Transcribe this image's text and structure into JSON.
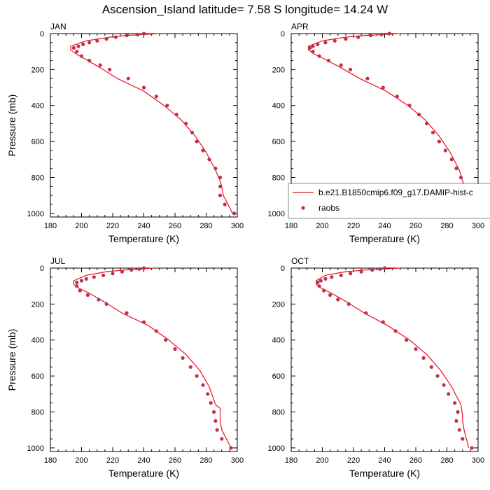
{
  "title": "Ascension_Island  latitude= 7.58 S longitude= 14.24 W",
  "colors": {
    "model": "#e8141e",
    "obs": "#c0304f",
    "axis": "#000000",
    "legend_border": "#888888"
  },
  "legend": {
    "model_label": "b.e21.B1850cmip6.f09_g17.DAMIP-hist-c",
    "obs_label": "raobs"
  },
  "chart_data": [
    {
      "type": "line",
      "panel": "JAN",
      "title": "JAN",
      "xlabel": "Temperature (K)",
      "ylabel": "Pressure (mb)",
      "xlim": [
        180,
        300
      ],
      "ylim": [
        1020,
        0
      ],
      "xticks": [
        180,
        200,
        220,
        240,
        260,
        280,
        300
      ],
      "yticks": [
        0,
        200,
        400,
        600,
        800,
        1000
      ],
      "series": [
        {
          "name": "b.e21.B1850cmip6.f09_g17.DAMIP-hist-c",
          "x": [
            250,
            240,
            229,
            218,
            203,
            193,
            193,
            196,
            202,
            212,
            223,
            240,
            253,
            264,
            273,
            280,
            286,
            289,
            290,
            291,
            297
          ],
          "y": [
            0,
            5,
            10,
            20,
            40,
            70,
            90,
            110,
            140,
            190,
            250,
            320,
            400,
            480,
            570,
            660,
            760,
            820,
            850,
            900,
            1000
          ]
        },
        {
          "name": "raobs",
          "x": [
            240,
            236,
            229,
            222,
            216,
            210,
            205,
            201,
            198,
            195,
            197,
            200,
            205,
            212,
            218,
            230,
            240,
            248,
            255,
            261,
            267,
            271,
            274,
            278,
            282,
            286,
            289,
            289,
            289,
            292,
            298
          ],
          "y": [
            0,
            5,
            10,
            20,
            30,
            40,
            50,
            60,
            70,
            80,
            100,
            125,
            150,
            175,
            200,
            250,
            300,
            350,
            400,
            450,
            500,
            550,
            600,
            650,
            700,
            750,
            800,
            850,
            900,
            950,
            1000
          ]
        }
      ]
    },
    {
      "type": "line",
      "panel": "APR",
      "title": "APR",
      "xlabel": "Temperature (K)",
      "ylabel": "",
      "xlim": [
        180,
        300
      ],
      "ylim": [
        1020,
        0
      ],
      "xticks": [
        180,
        200,
        220,
        240,
        260,
        280,
        300
      ],
      "yticks": [
        0,
        200,
        400,
        600,
        800,
        1000
      ],
      "series": [
        {
          "name": "b.e21.B1850cmip6.f09_g17.DAMIP-hist-c",
          "x": [
            250,
            240,
            228,
            215,
            200,
            191,
            191,
            194,
            201,
            212,
            224,
            241,
            255,
            266,
            275,
            282,
            288,
            290,
            291,
            292,
            297
          ],
          "y": [
            0,
            5,
            10,
            20,
            40,
            70,
            90,
            110,
            140,
            190,
            250,
            320,
            400,
            480,
            570,
            660,
            760,
            820,
            850,
            900,
            1000
          ]
        },
        {
          "name": "raobs",
          "x": [
            243,
            238,
            231,
            223,
            215,
            208,
            202,
            197,
            194,
            192,
            194,
            198,
            204,
            212,
            218,
            229,
            239,
            248,
            256,
            262,
            267,
            271,
            275,
            279,
            283,
            286,
            289,
            290,
            291,
            293,
            298
          ],
          "y": [
            0,
            5,
            10,
            20,
            30,
            40,
            50,
            60,
            70,
            80,
            100,
            125,
            150,
            175,
            200,
            250,
            300,
            350,
            400,
            450,
            500,
            550,
            600,
            650,
            700,
            750,
            800,
            850,
            900,
            950,
            1000
          ]
        }
      ]
    },
    {
      "type": "line",
      "panel": "JUL",
      "title": "JUL",
      "xlabel": "Temperature (K)",
      "ylabel": "Pressure (mb)",
      "xlim": [
        180,
        300
      ],
      "ylim": [
        1020,
        0
      ],
      "xticks": [
        180,
        200,
        220,
        240,
        260,
        280,
        300
      ],
      "yticks": [
        0,
        200,
        400,
        600,
        800,
        1000
      ],
      "series": [
        {
          "name": "b.e21.B1850cmip6.f09_g17.DAMIP-hist-c",
          "x": [
            246,
            238,
            228,
            216,
            203,
            195,
            195,
            198,
            205,
            215,
            226,
            243,
            256,
            267,
            276,
            282,
            286,
            289,
            289,
            290,
            296
          ],
          "y": [
            0,
            5,
            10,
            20,
            40,
            70,
            90,
            110,
            140,
            190,
            250,
            320,
            400,
            480,
            570,
            660,
            760,
            780,
            850,
            900,
            1000
          ]
        },
        {
          "name": "raobs",
          "x": [
            240,
            237,
            232,
            226,
            220,
            214,
            208,
            203,
            200,
            197,
            197,
            199,
            204,
            211,
            216,
            229,
            240,
            248,
            254,
            260,
            265,
            270,
            274,
            278,
            281,
            283,
            285,
            286,
            287,
            290,
            296
          ],
          "y": [
            0,
            5,
            10,
            20,
            30,
            40,
            50,
            60,
            70,
            80,
            100,
            125,
            150,
            175,
            200,
            250,
            300,
            350,
            400,
            450,
            500,
            550,
            600,
            650,
            700,
            750,
            800,
            850,
            900,
            950,
            1000
          ]
        }
      ]
    },
    {
      "type": "line",
      "panel": "OCT",
      "title": "OCT",
      "xlabel": "Temperature (K)",
      "ylabel": "",
      "xlim": [
        180,
        300
      ],
      "ylim": [
        1020,
        0
      ],
      "xticks": [
        180,
        200,
        220,
        240,
        260,
        280,
        300
      ],
      "yticks": [
        0,
        200,
        400,
        600,
        800,
        1000
      ],
      "series": [
        {
          "name": "b.e21.B1850cmip6.f09_g17.DAMIP-hist-c",
          "x": [
            250,
            240,
            228,
            215,
            202,
            196,
            196,
            199,
            206,
            216,
            227,
            242,
            256,
            267,
            276,
            283,
            289,
            290,
            290,
            291,
            294
          ],
          "y": [
            0,
            5,
            10,
            20,
            40,
            70,
            90,
            110,
            140,
            190,
            250,
            320,
            400,
            480,
            570,
            660,
            760,
            820,
            850,
            900,
            1000
          ]
        },
        {
          "name": "raobs",
          "x": [
            240,
            237,
            232,
            225,
            218,
            212,
            206,
            202,
            199,
            197,
            198,
            201,
            205,
            210,
            217,
            228,
            239,
            247,
            254,
            260,
            265,
            270,
            274,
            278,
            281,
            285,
            287,
            286,
            288,
            290,
            296
          ],
          "y": [
            0,
            5,
            10,
            20,
            30,
            40,
            50,
            60,
            70,
            80,
            100,
            125,
            150,
            175,
            200,
            250,
            300,
            350,
            400,
            450,
            500,
            550,
            600,
            650,
            700,
            750,
            800,
            850,
            900,
            950,
            1000
          ]
        }
      ]
    }
  ]
}
